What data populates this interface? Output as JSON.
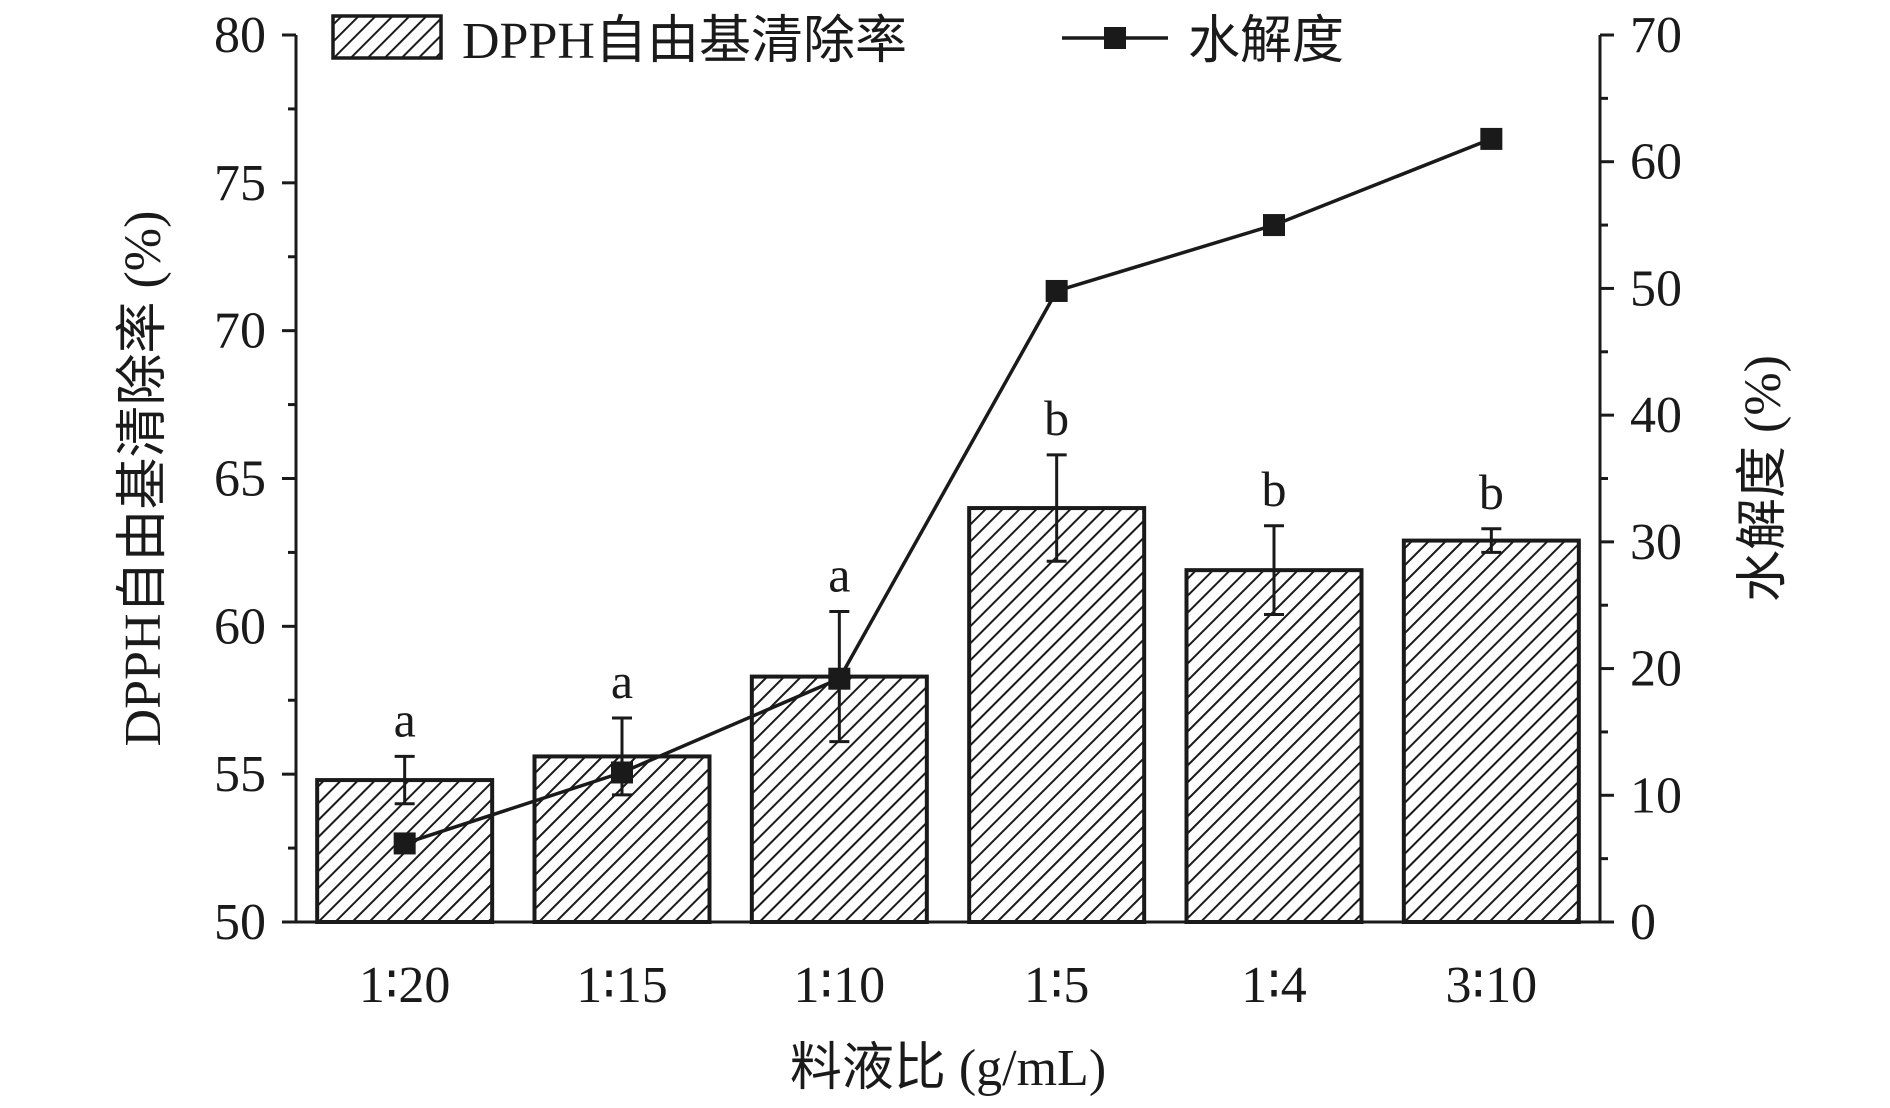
{
  "chart_data": {
    "type": "bar",
    "categories": [
      "1∶20",
      "1∶15",
      "1∶10",
      "1∶5",
      "1∶4",
      "3∶10"
    ],
    "series": [
      {
        "name": "DPPH自由基清除率",
        "type": "bar",
        "axis": "left",
        "values": [
          54.8,
          55.6,
          58.3,
          64.0,
          61.9,
          62.9
        ],
        "error": [
          0.8,
          1.3,
          2.2,
          1.8,
          1.5,
          0.4
        ],
        "significance": [
          "a",
          "a",
          "a",
          "b",
          "b",
          "b"
        ]
      },
      {
        "name": "水解度",
        "type": "line",
        "axis": "right",
        "values": [
          6.2,
          11.8,
          19.2,
          49.8,
          55.0,
          61.8
        ]
      }
    ],
    "xlabel": "料液比 (g/mL)",
    "ylabel": "DPPH自由基清除率 (%)",
    "y2label": "水解度 (%)",
    "ylim": [
      50,
      80
    ],
    "y2lim": [
      0,
      70
    ],
    "yticks": [
      50,
      55,
      60,
      65,
      70,
      75,
      80
    ],
    "y2ticks": [
      0,
      10,
      20,
      30,
      40,
      50,
      60,
      70
    ],
    "legend_position": "top",
    "grid": false
  }
}
